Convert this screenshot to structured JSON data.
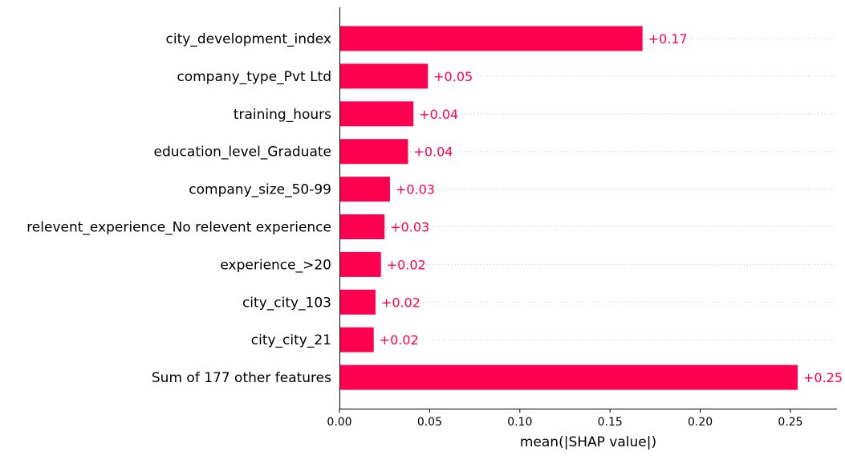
{
  "chart_data": {
    "type": "bar",
    "orientation": "horizontal",
    "xlabel": "mean(|SHAP value|)",
    "xlim": [
      0,
      0.28
    ],
    "xticks": [
      0.0,
      0.05,
      0.1,
      0.15,
      0.2,
      0.25
    ],
    "xtick_labels": [
      "0.00",
      "0.05",
      "0.10",
      "0.15",
      "0.20",
      "0.25"
    ],
    "bar_color": "#ff0051",
    "label_color": "#ff0051",
    "grid": "dotted row guides",
    "categories": [
      "city_development_index",
      "company_type_Pvt Ltd",
      "training_hours",
      "education_level_Graduate",
      "company_size_50-99",
      "relevent_experience_No relevent experience",
      "experience_>20",
      "city_city_103",
      "city_city_21",
      "Sum of 177 other features"
    ],
    "values": [
      0.168,
      0.049,
      0.041,
      0.038,
      0.028,
      0.025,
      0.023,
      0.02,
      0.019,
      0.254
    ],
    "value_labels": [
      "+0.17",
      "+0.05",
      "+0.04",
      "+0.04",
      "+0.03",
      "+0.03",
      "+0.02",
      "+0.02",
      "+0.02",
      "+0.25"
    ]
  }
}
